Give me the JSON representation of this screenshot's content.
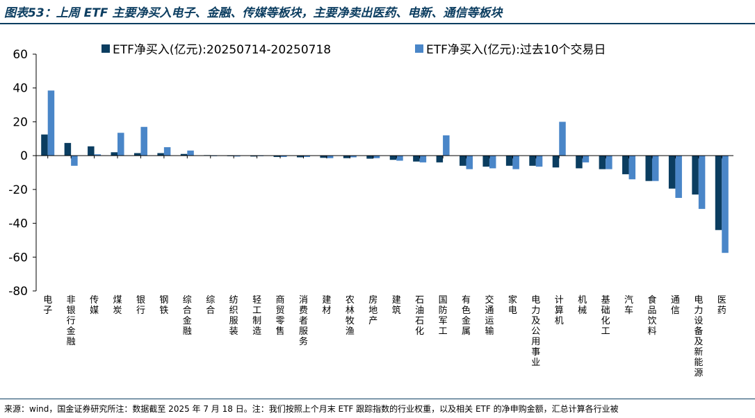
{
  "title": "图表53：上周 ETF 主要净买入电子、金融、传媒等板块，主要净卖出医药、电新、通信等板块",
  "footnote": "来源：wind，国金证券研究所注：数据截至 2025 年 7 月 18 日。注：我们按照上个月末 ETF 跟踪指数的行业权重，以及相关 ETF 的净申购金额，汇总计算各行业被",
  "colors": {
    "series1": "#0b3d60",
    "series2": "#4a86c8",
    "title": "#0b3d60"
  },
  "chart_data": {
    "type": "bar",
    "ylim": [
      -80,
      60
    ],
    "yticks": [
      60,
      40,
      20,
      0,
      -20,
      -40,
      -60,
      -80
    ],
    "grid": false,
    "legend_position": "top",
    "categories": [
      "电子",
      "非银行金融",
      "传媒",
      "煤炭",
      "银行",
      "钢铁",
      "综合金融",
      "综合",
      "纺织服装",
      "轻工制造",
      "商贸零售",
      "消费者服务",
      "建材",
      "农林牧渔",
      "房地产",
      "建筑",
      "石油石化",
      "国防军工",
      "有色金属",
      "交通运输",
      "家电",
      "电力及公用事业",
      "计算机",
      "机械",
      "基础化工",
      "汽车",
      "食品饮料",
      "通信",
      "电力设备及新能源",
      "医药"
    ],
    "series": [
      {
        "name": "ETF净买入(亿元):20250714-20250718",
        "values": [
          12.5,
          7.5,
          5.5,
          2,
          1.5,
          1.5,
          1,
          0.3,
          -0.3,
          -0.5,
          -0.8,
          -1,
          -1.3,
          -1.5,
          -1.8,
          -2.5,
          -3.5,
          -4,
          -6,
          -6.5,
          -6,
          -6,
          -7,
          -7.5,
          -8,
          -11,
          -15,
          -19.5,
          -23,
          -44
        ]
      },
      {
        "name": "ETF净买入(亿元):过去10个交易日",
        "values": [
          38.5,
          -6,
          0.8,
          13.5,
          17,
          5,
          3,
          -0.3,
          -0.5,
          -0.3,
          -0.8,
          -0.8,
          -1.5,
          -1,
          -1.5,
          -3,
          -4,
          12,
          -8,
          -7.5,
          -8,
          -6.5,
          20,
          -4,
          -8,
          -14,
          -15,
          -25,
          -31.5,
          -57.5
        ]
      }
    ]
  }
}
